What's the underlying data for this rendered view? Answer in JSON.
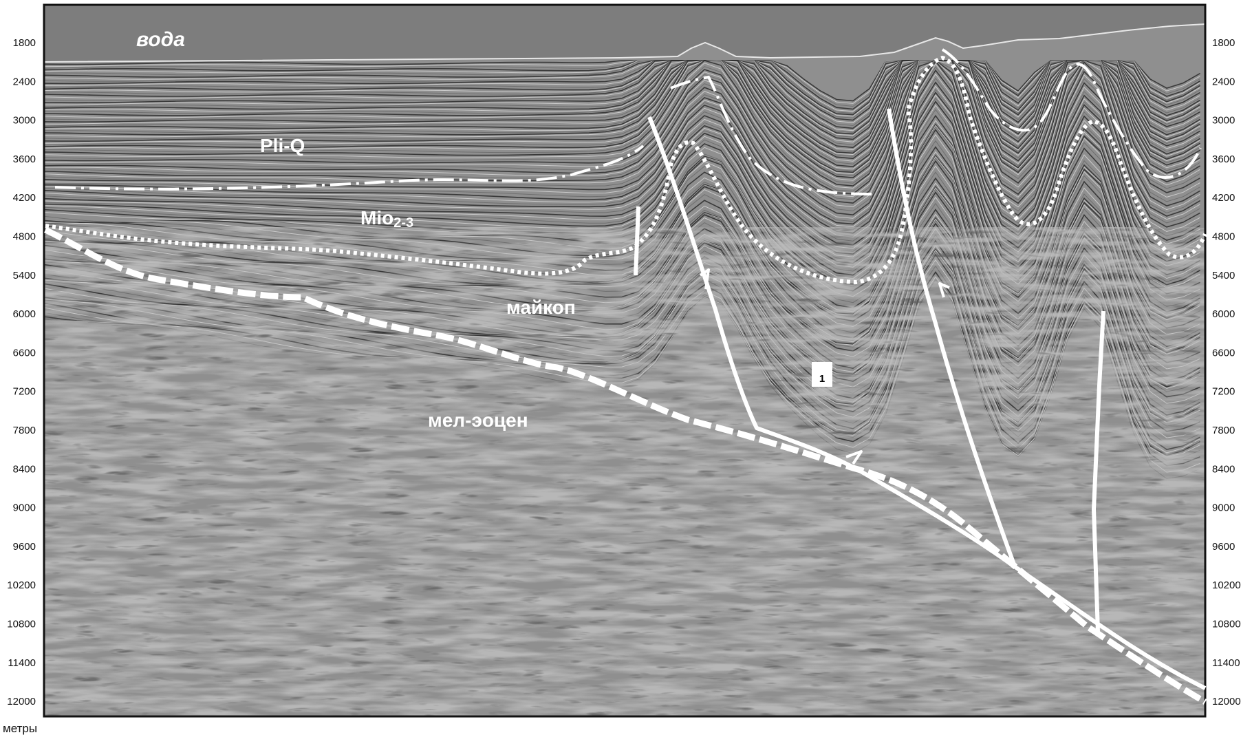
{
  "figure": {
    "depth_unit": "метры",
    "depth_ticks": [
      "1800",
      "2400",
      "3000",
      "3600",
      "4200",
      "4800",
      "5400",
      "6000",
      "6600",
      "7200",
      "7800",
      "8400",
      "9000",
      "9600",
      "10200",
      "10800",
      "11400",
      "12000"
    ],
    "labels": {
      "water": "вода",
      "pliq": "Pli-Q",
      "mio_main": "Mio",
      "mio_sub": "2-3",
      "maikop": "майкоп",
      "mel_eocene": "мел-эоцен",
      "fault_number": "1"
    }
  }
}
